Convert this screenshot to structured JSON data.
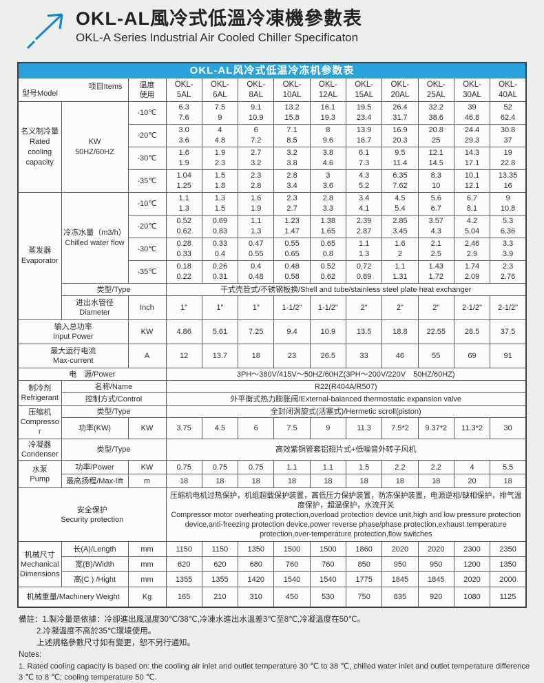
{
  "page": {
    "title_cn": "OKL-AL風冷式低溫冷凍機參數表",
    "title_en": "OKL-A Series Industrial Air Cooled Chiller Specificaton",
    "accent_blue": "#2aa3dc",
    "arrow_color": "#1b87c9"
  },
  "table": {
    "caption": "OKL-AL风冷式低温冷冻机参数表",
    "corner": {
      "model": "型号Model",
      "items": "项目Items"
    },
    "temp_header_line1": "温度",
    "temp_header_line2": "使用",
    "models": [
      "OKL-5AL",
      "OKL-6AL",
      "OKL-8AL",
      "OKL-10AL",
      "OKL-12AL",
      "OKL-15AL",
      "OKL-20AL",
      "OKL-25AL",
      "OKL-30AL",
      "OKL-40AL"
    ],
    "sections": {
      "rated": {
        "label_cn": "名义制冷量",
        "label_en": "Rated cooling capacity",
        "unit_line1": "KW",
        "unit_line2": "50HZ/60HZ",
        "rows": [
          {
            "temp": "-10℃",
            "hz50": [
              "6.3",
              "7.5",
              "9.1",
              "13.2",
              "16.1",
              "19.5",
              "26.4",
              "32.2",
              "39",
              "52"
            ],
            "hz60": [
              "7.6",
              "9",
              "10.9",
              "15.8",
              "19.3",
              "23.4",
              "31.7",
              "38.6",
              "46.8",
              "62.4"
            ]
          },
          {
            "temp": "-20℃",
            "hz50": [
              "3.0",
              "4",
              "6",
              "7.1",
              "8",
              "13.9",
              "16.9",
              "20.8",
              "24.4",
              "30.8"
            ],
            "hz60": [
              "3.6",
              "4.8",
              "7.2",
              "8.5",
              "9.6",
              "16.7",
              "20.3",
              "25",
              "29.3",
              "37"
            ]
          },
          {
            "temp": "-30℃",
            "hz50": [
              "1.6",
              "1.9",
              "2.7",
              "3.2",
              "3.8",
              "6.1",
              "9.5",
              "12.1",
              "14.3",
              "19"
            ],
            "hz60": [
              "1.9",
              "2.3",
              "3.2",
              "3.8",
              "4.6",
              "7.3",
              "11.4",
              "14.5",
              "17.1",
              "22.8"
            ]
          },
          {
            "temp": "-35℃",
            "hz50": [
              "1.04",
              "1.5",
              "2.3",
              "2.8",
              "3",
              "4.3",
              "6.35",
              "8.3",
              "10.1",
              "13.35"
            ],
            "hz60": [
              "1.25",
              "1.8",
              "2.8",
              "3.4",
              "3.6",
              "5.2",
              "7.62",
              "10",
              "12.1",
              "16"
            ]
          }
        ]
      },
      "evaporator": {
        "label_cn": "蒸发器",
        "label_en": "Evaporator",
        "flow_label_cn": "冷冻水量（m3/h）",
        "flow_label_en": "Chilled water flow",
        "rows": [
          {
            "temp": "-10℃",
            "hz50": [
              "1.1",
              "1.3",
              "1.6",
              "2.3",
              "2.8",
              "3.4",
              "4.5",
              "5.6",
              "6.7",
              "9"
            ],
            "hz60": [
              "1.3",
              "1.5",
              "1.9",
              "2.7",
              "3.3",
              "4.1",
              "5.4",
              "6.7",
              "8.1",
              "10.8"
            ]
          },
          {
            "temp": "-20℃",
            "hz50": [
              "0.52",
              "0.69",
              "1.1",
              "1.23",
              "1.38",
              "2.39",
              "2.85",
              "3.57",
              "4.2",
              "5.3"
            ],
            "hz60": [
              "0.62",
              "0.83",
              "1.3",
              "1.47",
              "1.65",
              "2.87",
              "3.45",
              "4.3",
              "5.04",
              "6.36"
            ]
          },
          {
            "temp": "-30℃",
            "hz50": [
              "0.28",
              "0.33",
              "0.47",
              "0.55",
              "0.65",
              "1.1",
              "1.6",
              "2.1",
              "2.46",
              "3.3"
            ],
            "hz60": [
              "0.33",
              "0.4",
              "0.55",
              "0.65",
              "0.8",
              "1.3",
              "2",
              "2.5",
              "2.9",
              "3.9"
            ]
          },
          {
            "temp": "-35℃",
            "hz50": [
              "0.18",
              "0.26",
              "0.4",
              "0.48",
              "0.52",
              "0.72",
              "1.1",
              "1.43",
              "1.74",
              "2.3"
            ],
            "hz60": [
              "0.22",
              "0.31",
              "0.48",
              "0.58",
              "0.62",
              "0.89",
              "1.31",
              "1.72",
              "2.09",
              "2.76"
            ]
          }
        ],
        "type_label": "类型/Type",
        "type_value": "干式壳管式/不锈钢板换/Shell and tube/stainless steel plate heat exchanger",
        "diameter_label_cn": "进出水管径",
        "diameter_label_en": "Diameter",
        "diameter_unit": "Inch",
        "diameter_values": [
          "1\"",
          "1\"",
          "1\"",
          "1-1/2\"",
          "1-1/2\"",
          "2\"",
          "2\"",
          "2\"",
          "2-1/2\"",
          "2-1/2\""
        ]
      },
      "input_power": {
        "label_cn": "输入总功率",
        "label_en": "Input Power",
        "unit": "KW",
        "values": [
          "4.86",
          "5.61",
          "7.25",
          "9.4",
          "10.9",
          "13.5",
          "18.8",
          "22.55",
          "28.5",
          "37.5"
        ]
      },
      "max_current": {
        "label_cn": "最大运行电流",
        "label_en": "Max-current",
        "unit": "A",
        "values": [
          "12",
          "13.7",
          "18",
          "23",
          "26.5",
          "33",
          "46",
          "55",
          "69",
          "91"
        ]
      },
      "power_supply": {
        "label": "电　源/Power",
        "value": "3PH～380V/415V～50HZ/60HZ(3PH～200V/220V　50HZ/60HZ)"
      },
      "refrigerant": {
        "label_cn": "制冷剂",
        "label_en": "Refrigerant",
        "name_label": "名称/Name",
        "name_value": "R22(R404A/R507)",
        "control_label": "控制方式/Control",
        "control_value": "外平衡式热力膨胀阀/External-balanced thermostatic expansion valve"
      },
      "compressor": {
        "label_cn": "压缩机",
        "label_en": "Compressor",
        "type_label": "类型/Type",
        "type_value": "全封闭涡旋式(活塞式)/Hermetic scroll(piston)",
        "power_label": "功率(KW)",
        "power_unit": "KW",
        "power_values": [
          "3.75",
          "4.5",
          "6",
          "7.5",
          "9",
          "11.3",
          "7.5*2",
          "9.37*2",
          "11.3*2",
          "30"
        ]
      },
      "condenser": {
        "label_cn": "冷凝器",
        "label_en": "Condenser",
        "type_label": "类型/Type",
        "type_value": "高效紫铜管套铝翅片式+低噪音外转子风机"
      },
      "pump": {
        "label_cn": "水泵",
        "label_en": "Pump",
        "power_label": "功率/Power",
        "power_unit": "KW",
        "power_values": [
          "0.75",
          "0.75",
          "0.75",
          "1.1",
          "1.1",
          "1.5",
          "2.2",
          "2.2",
          "4",
          "5.5"
        ],
        "lift_label": "最高扬程/Max-lift",
        "lift_unit": "m",
        "lift_values": [
          "18",
          "18",
          "18",
          "18",
          "18",
          "18",
          "18",
          "18",
          "20",
          "18"
        ]
      },
      "security": {
        "label_cn": "安全保护",
        "label_en": "Security protection",
        "text_cn": "压缩机电机过热保护，机组超载保护装置，高低压力保护装置，防冻保护装置，电源逆相/缺相保护，排气温度保护，超温保护，水流开关",
        "text_en": " Compressor motor overheating protection,overload protection device unit,high and low pressure protection device,anti-freezing protection device,power reverse phase/phase protection,exhaust temperature protection,over-temperature protection,flow switches"
      },
      "mechanical": {
        "label_cn": "机械尺寸",
        "label_en": "Mechanical Dimensions",
        "rows": [
          {
            "label": "长(A)/Length",
            "unit": "mm",
            "values": [
              "1150",
              "1150",
              "1350",
              "1500",
              "1500",
              "1860",
              "2020",
              "2020",
              "2300",
              "2350"
            ]
          },
          {
            "label": "宽(B)/Width",
            "unit": "mm",
            "values": [
              "620",
              "620",
              "680",
              "760",
              "760",
              "850",
              "950",
              "950",
              "1200",
              "1350"
            ]
          },
          {
            "label": "高(C ) /Hight",
            "unit": "mm",
            "values": [
              "1355",
              "1355",
              "1420",
              "1540",
              "1540",
              "1775",
              "1845",
              "1845",
              "2020",
              "2000"
            ]
          }
        ]
      },
      "weight": {
        "label": "机械重量/Machinery Weight",
        "unit": "Kg",
        "values": [
          "165",
          "210",
          "310",
          "450",
          "530",
          "750",
          "835",
          "920",
          "1080",
          "1125"
        ]
      }
    }
  },
  "notes": {
    "line1": "備註：1.製冷量是依據：冷卻進出風溫度30℃/38℃,冷凍水進出水溫差3℃至8℃,冷凝溫度在50℃。",
    "line2": "2.冷凝溫度不高於35℃環境使用。",
    "line3": "上述規格參數尺寸如有變更，恕不另行通知。",
    "en_header": "Notes:",
    "en_line": "1. Rated cooling capacity is based on: the cooling air inlet and outlet temperature 30 ℃ to 38 ℃, chilled water inlet and outlet temperature difference 3 ℃ to 8 ℃; cooling temperature 50 ℃."
  }
}
